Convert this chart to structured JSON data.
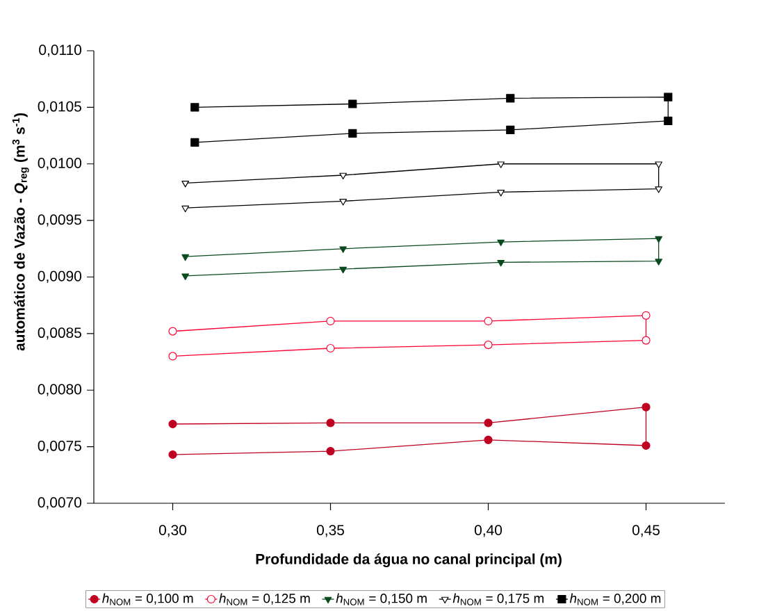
{
  "chart_data": {
    "type": "line",
    "xlabel": "Profundidade da água no canal principal (m)",
    "ylabel": "automático de Vazão - *Q*$_{reg}$ (m$^{3}$ s$^{-1}$)",
    "xlim": [
      0.275,
      0.475
    ],
    "ylim": [
      0.007,
      0.011
    ],
    "xticks": [
      {
        "value": 0.3,
        "label": "0,30"
      },
      {
        "value": 0.35,
        "label": "0,35"
      },
      {
        "value": 0.4,
        "label": "0,40"
      },
      {
        "value": 0.45,
        "label": "0,45"
      }
    ],
    "yticks": [
      {
        "value": 0.007,
        "label": "0,0070"
      },
      {
        "value": 0.0075,
        "label": "0,0075"
      },
      {
        "value": 0.008,
        "label": "0,0080"
      },
      {
        "value": 0.0085,
        "label": "0,0085"
      },
      {
        "value": 0.009,
        "label": "0,0090"
      },
      {
        "value": 0.0095,
        "label": "0,0095"
      },
      {
        "value": 0.01,
        "label": "0,0100"
      },
      {
        "value": 0.0105,
        "label": "0,0105"
      },
      {
        "value": 0.011,
        "label": "0,0110"
      }
    ],
    "legend": "bottom",
    "line_style": "solid",
    "series": [
      {
        "name": "*h*$_{NOM}$ = 0,100 m",
        "color": "#c00020",
        "marker": "circle",
        "x": [
          0.3,
          0.35,
          0.4,
          0.45,
          0.45,
          0.4,
          0.35,
          0.3
        ],
        "values": [
          0.0077,
          0.00771,
          0.00771,
          0.00785,
          0.00751,
          0.00756,
          0.00746,
          0.00743
        ]
      },
      {
        "name": "*h*$_{NOM}$ = 0,125 m",
        "color": "#ff0033",
        "marker": "circle",
        "x": [
          0.3,
          0.35,
          0.4,
          0.45,
          0.45,
          0.4,
          0.35,
          0.3
        ],
        "values": [
          0.00852,
          0.00861,
          0.00861,
          0.00866,
          0.00844,
          0.0084,
          0.00837,
          0.0083
        ]
      },
      {
        "name": "*h*$_{NOM}$ = 0,150 m",
        "color": "#0b4a1f",
        "marker": "triangle",
        "x": [
          0.304,
          0.354,
          0.404,
          0.454,
          0.454,
          0.404,
          0.354,
          0.304
        ],
        "values": [
          0.00918,
          0.00925,
          0.00931,
          0.00934,
          0.00914,
          0.00913,
          0.00907,
          0.00901
        ]
      },
      {
        "name": "*h*$_{NOM}$ = 0,175 m",
        "color": "#000000",
        "marker": "triangle",
        "x": [
          0.304,
          0.354,
          0.404,
          0.454,
          0.454,
          0.404,
          0.354,
          0.304
        ],
        "values": [
          0.00983,
          0.0099,
          0.01,
          0.01,
          0.00978,
          0.00975,
          0.00967,
          0.00961
        ]
      },
      {
        "name": "*h*$_{NOM}$ = 0,200 m",
        "color": "#000000",
        "marker": "square",
        "x": [
          0.307,
          0.357,
          0.407,
          0.457,
          0.457,
          0.407,
          0.357,
          0.307
        ],
        "values": [
          0.0105,
          0.01053,
          0.01058,
          0.01059,
          0.01038,
          0.0103,
          0.01027,
          0.01019
        ]
      }
    ]
  }
}
